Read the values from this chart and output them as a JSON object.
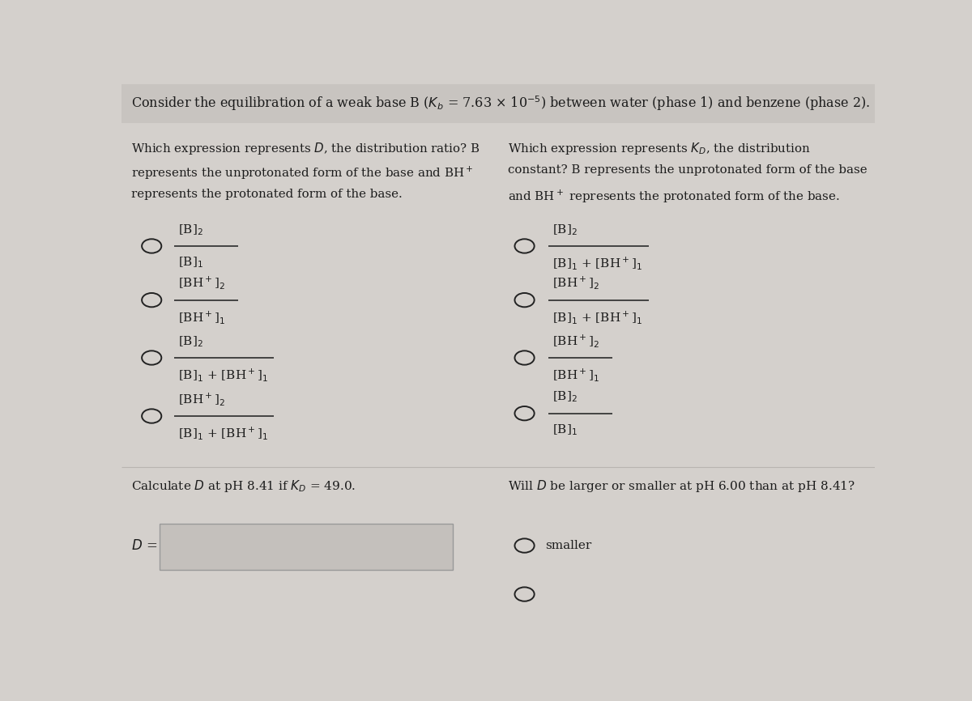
{
  "background_color": "#d4d0cc",
  "title_bg": "#c8c4c0",
  "title_text": "Consider the equilibration of a weak base B ($K_b$ = 7.63 × 10$^{-5}$) between water (phase 1) and benzene (phase 2).",
  "left_header": [
    "Which expression represents $D$, the distribution ratio? B",
    "represents the unprotonated form of the base and BH$^+$",
    "represents the protonated form of the base."
  ],
  "right_header": [
    "Which expression represents $K_D$, the distribution",
    "constant? B represents the unprotonated form of the base",
    "and BH$^+$ represents the protonated form of the base."
  ],
  "left_options": [
    {
      "num": "[B]$_2$",
      "den": "[B]$_1$"
    },
    {
      "num": "[BH$^+$]$_2$",
      "den": "[BH$^+$]$_1$"
    },
    {
      "num": "[B]$_2$",
      "den": "[B]$_1$ + [BH$^+$]$_1$"
    },
    {
      "num": "[BH$^+$]$_2$",
      "den": "[B]$_1$ + [BH$^+$]$_1$"
    }
  ],
  "right_options": [
    {
      "num": "[B]$_2$",
      "den": "[B]$_1$ + [BH$^+$]$_1$"
    },
    {
      "num": "[BH$^+$]$_2$",
      "den": "[B]$_1$ + [BH$^+$]$_1$"
    },
    {
      "num": "[BH$^+$]$_2$",
      "den": "[BH$^+$]$_1$"
    },
    {
      "num": "[B]$_2$",
      "den": "[B]$_1$"
    }
  ],
  "calc_text": "Calculate $D$ at pH 8.41 if $K_D$ = 49.0.",
  "d_label": "$D$ =",
  "will_text": "Will $D$ be larger or smaller at pH 6.00 than at pH 8.41?",
  "smaller_text": "smaller",
  "text_color": "#1c1c1c",
  "circle_color": "#222222",
  "line_color": "#1c1c1c",
  "box_fill": "#c4c0bc",
  "box_edge": "#999999"
}
